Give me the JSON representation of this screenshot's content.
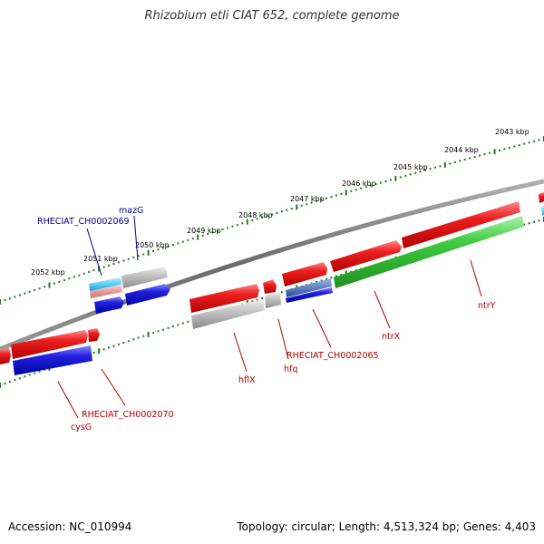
{
  "title": "Rhizobium etli CIAT 652, complete genome",
  "footer": {
    "accession": "Accession: NC_010994",
    "summary": "Topology: circular; Length: 4,513,324 bp; Genes: 4,403"
  },
  "ticks": [
    "2043 kbp",
    "2044 kbp",
    "2045 kbp",
    "2046 kbp",
    "2047 kbp",
    "2048 kbp",
    "2049 kbp",
    "2050 kbp",
    "2051 kbp",
    "2052 kbp"
  ],
  "gene_labels": {
    "mazG": "mazG",
    "RHECIAT_CH0002069": "RHECIAT_CH0002069",
    "ntrY": "ntrY",
    "ntrX": "ntrX",
    "RHECIAT_CH0002065": "RHECIAT_CH0002065",
    "hfq": "hfq",
    "hflX": "hflX",
    "RHECIAT_CH0002070": "RHECIAT_CH0002070",
    "cysG": "cysG"
  },
  "colors": {
    "forward_gene": "#e01010",
    "reverse_gene": "#1a1ad8",
    "ntrY": "#3cc83c",
    "pseudo_gene": "#b8b8b8",
    "tick_green": "#1f7a1f",
    "backbone": "#7a7a7a",
    "label_blue": "#00008b",
    "label_red": "#b00000"
  }
}
